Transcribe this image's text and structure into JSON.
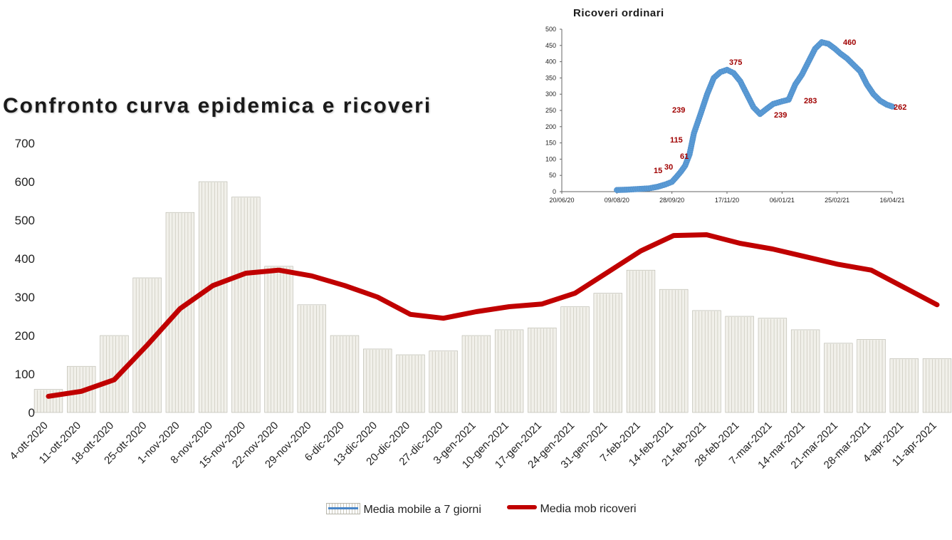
{
  "chart_data": [
    {
      "type": "bar+line",
      "title": "Confronto curva epidemica e ricoveri",
      "ylim": [
        0,
        700
      ],
      "yticks": [
        0,
        100,
        200,
        300,
        400,
        500,
        600,
        700
      ],
      "categories": [
        "4-ott-2020",
        "11-ott-2020",
        "18-ott-2020",
        "25-ott-2020",
        "1-nov-2020",
        "8-nov-2020",
        "15-nov-2020",
        "22-nov-2020",
        "29-nov-2020",
        "6-dic-2020",
        "13-dic-2020",
        "20-dic-2020",
        "27-dic-2020",
        "3-gen-2021",
        "10-gen-2021",
        "17-gen-2021",
        "24-gen-2021",
        "31-gen-2021",
        "7-feb-2021",
        "14-feb-2021",
        "21-feb-2021",
        "28-feb-2021",
        "7-mar-2021",
        "14-mar-2021",
        "21-mar-2021",
        "28-mar-2021",
        "4-apr-2021",
        "11-apr-2021"
      ],
      "grid": false,
      "legend_position": "bottom",
      "series": [
        {
          "name": "Media mobile a 7 giorni",
          "kind": "bar",
          "color": "#d9d7cc",
          "values": [
            60,
            120,
            200,
            350,
            520,
            600,
            560,
            380,
            280,
            200,
            165,
            150,
            160,
            200,
            215,
            220,
            275,
            310,
            370,
            320,
            265,
            250,
            245,
            215,
            180,
            190,
            140,
            140
          ]
        },
        {
          "name": "Media mob ricoveri",
          "kind": "line",
          "color": "#c00000",
          "values": [
            42,
            55,
            85,
            175,
            270,
            330,
            362,
            370,
            355,
            330,
            300,
            255,
            245,
            262,
            275,
            282,
            310,
            365,
            420,
            460,
            462,
            440,
            425,
            405,
            385,
            370,
            325,
            280
          ]
        }
      ]
    },
    {
      "type": "scatter",
      "title": "Ricoveri ordinari",
      "ylim": [
        0,
        500
      ],
      "yticks": [
        0,
        50,
        100,
        150,
        200,
        250,
        300,
        350,
        400,
        450,
        500
      ],
      "xticks": [
        "20/06/20",
        "09/08/20",
        "28/09/20",
        "17/11/20",
        "06/01/21",
        "25/02/21",
        "16/04/21"
      ],
      "grid": false,
      "series": [
        {
          "name": "",
          "color": "#5b9bd5",
          "x": [
            "09/08/20",
            "18/08/20",
            "28/08/20",
            "07/09/20",
            "15/09/20",
            "22/09/20",
            "28/09/20",
            "02/10/20",
            "06/10/20",
            "10/10/20",
            "14/10/20",
            "18/10/20",
            "24/10/20",
            "30/10/20",
            "05/11/20",
            "11/11/20",
            "17/11/20",
            "23/11/20",
            "29/11/20",
            "05/12/20",
            "11/12/20",
            "17/12/20",
            "23/12/20",
            "29/12/20",
            "06/01/21",
            "12/01/21",
            "18/01/21",
            "24/01/21",
            "30/01/21",
            "05/02/21",
            "11/02/21",
            "17/02/21",
            "23/02/21",
            "28/02/21",
            "06/03/21",
            "12/03/21",
            "18/03/21",
            "24/03/21",
            "30/03/21",
            "05/04/21",
            "11/04/21",
            "16/04/21"
          ],
          "values": [
            5,
            6,
            8,
            10,
            15,
            22,
            30,
            45,
            61,
            80,
            115,
            180,
            239,
            300,
            350,
            368,
            375,
            365,
            340,
            300,
            260,
            239,
            255,
            270,
            278,
            283,
            330,
            360,
            400,
            440,
            460,
            455,
            440,
            425,
            410,
            390,
            370,
            330,
            300,
            280,
            268,
            262
          ]
        }
      ],
      "annotations": [
        "15",
        "30",
        "61",
        "115",
        "239",
        "375",
        "239",
        "283",
        "460",
        "262"
      ]
    }
  ]
}
